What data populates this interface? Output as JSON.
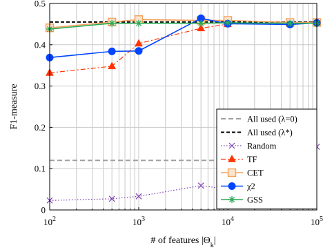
{
  "chart_data": {
    "type": "line",
    "xlabel": "# of features |Θ",
    "xlabel_sub": "k",
    "xlabel_suffix": "|",
    "ylabel": "F1-measure",
    "xscale": "log",
    "xlim": [
      100,
      100000
    ],
    "ylim": [
      0,
      0.5
    ],
    "grid": true,
    "legend_position": "bottom-right",
    "x_ticks": [
      {
        "value": 100,
        "base": "10",
        "exp": "2"
      },
      {
        "value": 1000,
        "base": "10",
        "exp": "3"
      },
      {
        "value": 10000,
        "base": "10",
        "exp": "4"
      },
      {
        "value": 100000,
        "base": "10",
        "exp": "5"
      }
    ],
    "y_ticks": [
      {
        "value": 0,
        "label": "0"
      },
      {
        "value": 0.1,
        "label": "0.1"
      },
      {
        "value": 0.2,
        "label": "0.2"
      },
      {
        "value": 0.3,
        "label": "0.3"
      },
      {
        "value": 0.4,
        "label": "0.4"
      },
      {
        "value": 0.5,
        "label": "0.5"
      }
    ],
    "reference_lines": [
      {
        "name": "All used (λ=0)",
        "y": 0.12,
        "color": "#a0a0a0",
        "dash": "7,4"
      },
      {
        "name": "All used (λ*)",
        "y": 0.455,
        "color": "#000000",
        "dash": "5,3"
      }
    ],
    "series": [
      {
        "name": "Random",
        "color": "#7b3fb0",
        "marker": "x",
        "line": "dotted",
        "x": [
          100,
          500,
          1000,
          5000,
          10000,
          50000,
          100000
        ],
        "y": [
          0.023,
          0.027,
          0.033,
          0.059,
          0.05,
          0.122,
          0.153
        ]
      },
      {
        "name": "TF",
        "color": "#ff3300",
        "marker": "triangle",
        "line": "dashdot",
        "x": [
          100,
          500,
          1000,
          5000,
          10000,
          50000,
          100000
        ],
        "y": [
          0.332,
          0.348,
          0.403,
          0.44,
          0.45,
          0.453,
          0.455
        ]
      },
      {
        "name": "CET",
        "color": "#f5a05a",
        "marker": "square",
        "line": "solid",
        "x": [
          100,
          500,
          1000,
          5000,
          10000,
          50000,
          100000
        ],
        "y": [
          0.441,
          0.455,
          0.461,
          0.459,
          0.459,
          0.454,
          0.454
        ]
      },
      {
        "name": "χ2",
        "color": "#0044ff",
        "marker": "circle",
        "line": "solid",
        "x": [
          100,
          500,
          1000,
          5000,
          10000,
          50000,
          100000
        ],
        "y": [
          0.369,
          0.384,
          0.385,
          0.464,
          0.451,
          0.449,
          0.453
        ]
      },
      {
        "name": "GSS",
        "color": "#2aaa55",
        "marker": "star",
        "line": "solid",
        "x": [
          100,
          500,
          1000,
          5000,
          10000,
          50000,
          100000
        ],
        "y": [
          0.438,
          0.452,
          0.452,
          0.452,
          0.453,
          0.452,
          0.452
        ]
      }
    ]
  }
}
